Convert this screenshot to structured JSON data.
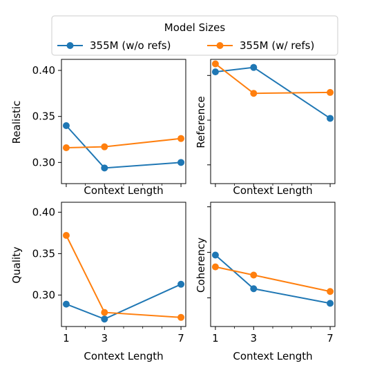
{
  "legend": {
    "title": "Model Sizes",
    "entries": [
      {
        "name": "355M (w/o refs)",
        "color": "#1f77b4"
      },
      {
        "name": "355M (w/ refs)",
        "color": "#ff7f0e"
      }
    ]
  },
  "chart_data": [
    {
      "type": "line",
      "panel": "top-left",
      "ylabel": "Realistic",
      "xlabel": "Context Length",
      "x": [
        1,
        3,
        7
      ],
      "xticks": [],
      "ylim": [
        0.277,
        0.412
      ],
      "yticks": [
        0.3,
        0.35,
        0.4
      ],
      "ytick_labels": [
        "0.30",
        "0.35",
        "0.40"
      ],
      "series": [
        {
          "name": "355M (w/o refs)",
          "color": "#1f77b4",
          "values": [
            0.34,
            0.294,
            0.3
          ]
        },
        {
          "name": "355M (w/ refs)",
          "color": "#ff7f0e",
          "values": [
            0.316,
            0.317,
            0.326
          ]
        }
      ]
    },
    {
      "type": "line",
      "panel": "top-right",
      "ylabel": "Reference",
      "xlabel": "Context Length",
      "x": [
        1,
        3,
        7
      ],
      "xticks": [],
      "ylim": [
        0.279,
        0.418
      ],
      "yticks": [
        0.3,
        0.35,
        0.4
      ],
      "ytick_labels": [],
      "series": [
        {
          "name": "355M (w/o refs)",
          "color": "#1f77b4",
          "values": [
            0.404,
            0.409,
            0.352
          ]
        },
        {
          "name": "355M (w/ refs)",
          "color": "#ff7f0e",
          "values": [
            0.413,
            0.38,
            0.381
          ]
        }
      ]
    },
    {
      "type": "line",
      "panel": "bottom-left",
      "ylabel": "Quality",
      "xlabel": "Context Length",
      "x": [
        1,
        3,
        7
      ],
      "xticks": [
        "1",
        "3",
        "7"
      ],
      "ylim": [
        0.262,
        0.412
      ],
      "yticks": [
        0.3,
        0.35,
        0.4
      ],
      "ytick_labels": [
        "0.30",
        "0.35",
        "0.40"
      ],
      "series": [
        {
          "name": "355M (w/o refs)",
          "color": "#1f77b4",
          "values": [
            0.289,
            0.271,
            0.313
          ]
        },
        {
          "name": "355M (w/ refs)",
          "color": "#ff7f0e",
          "values": [
            0.372,
            0.279,
            0.273
          ]
        }
      ]
    },
    {
      "type": "line",
      "panel": "bottom-right",
      "ylabel": "Coherency",
      "xlabel": "Context Length",
      "x": [
        1,
        3,
        7
      ],
      "xticks": [
        "1",
        "3",
        "7"
      ],
      "ylim": [
        0.2685,
        0.405
      ],
      "yticks": [
        0.3,
        0.35,
        0.4
      ],
      "ytick_labels": [],
      "series": [
        {
          "name": "355M (w/o refs)",
          "color": "#1f77b4",
          "values": [
            0.347,
            0.31,
            0.294
          ]
        },
        {
          "name": "355M (w/ refs)",
          "color": "#ff7f0e",
          "values": [
            0.334,
            0.325,
            0.307
          ]
        }
      ]
    }
  ]
}
